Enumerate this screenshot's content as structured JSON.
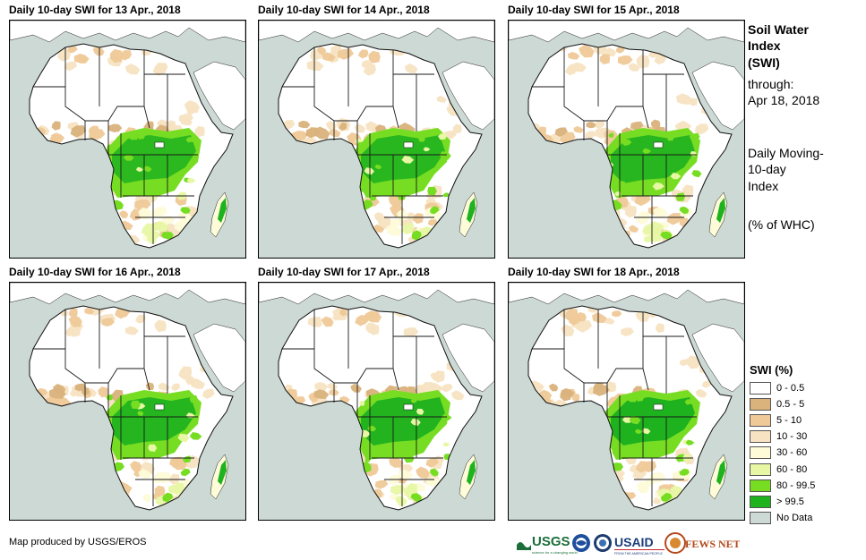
{
  "panels": [
    {
      "title": "Daily 10-day  SWI for 13 Apr., 2018"
    },
    {
      "title": "Daily 10-day  SWI for 14 Apr., 2018"
    },
    {
      "title": "Daily 10-day  SWI for 15 Apr., 2018"
    },
    {
      "title": "Daily 10-day  SWI for 16 Apr., 2018"
    },
    {
      "title": "Daily 10-day  SWI for 17 Apr., 2018"
    },
    {
      "title": "Daily 10-day  SWI for 18 Apr., 2018"
    }
  ],
  "info": {
    "title_line1": "Soil Water",
    "title_line2": "Index",
    "title_line3": "(SWI)",
    "through_label": "through:",
    "through_date": "Apr 18, 2018",
    "desc_line1": "Daily Moving-",
    "desc_line2": "10-day",
    "desc_line3": "Index",
    "units": "(% of WHC)"
  },
  "legend": {
    "title": "SWI (%)",
    "items": [
      {
        "label": "0 - 0.5",
        "color": "#ffffff"
      },
      {
        "label": "0.5 - 5",
        "color": "#d9b27c"
      },
      {
        "label": "5 - 10",
        "color": "#efc998"
      },
      {
        "label": "10 - 30",
        "color": "#f7e3c2"
      },
      {
        "label": "30 - 60",
        "color": "#fdfbd8"
      },
      {
        "label": "60 - 80",
        "color": "#e7f7a4"
      },
      {
        "label": "80 - 99.5",
        "color": "#77dd22"
      },
      {
        "label": "> 99.5",
        "color": "#1fb21f"
      },
      {
        "label": "No Data",
        "color": "#cdd9d4"
      }
    ]
  },
  "credit": "Map produced by USGS/EROS",
  "logos": {
    "usgs": "USGS",
    "usgs_tagline": "science for a changing world",
    "usaid": "USAID",
    "usaid_tagline": "FROM THE AMERICAN PEOPLE",
    "fewsnet": "FEWS NET"
  }
}
